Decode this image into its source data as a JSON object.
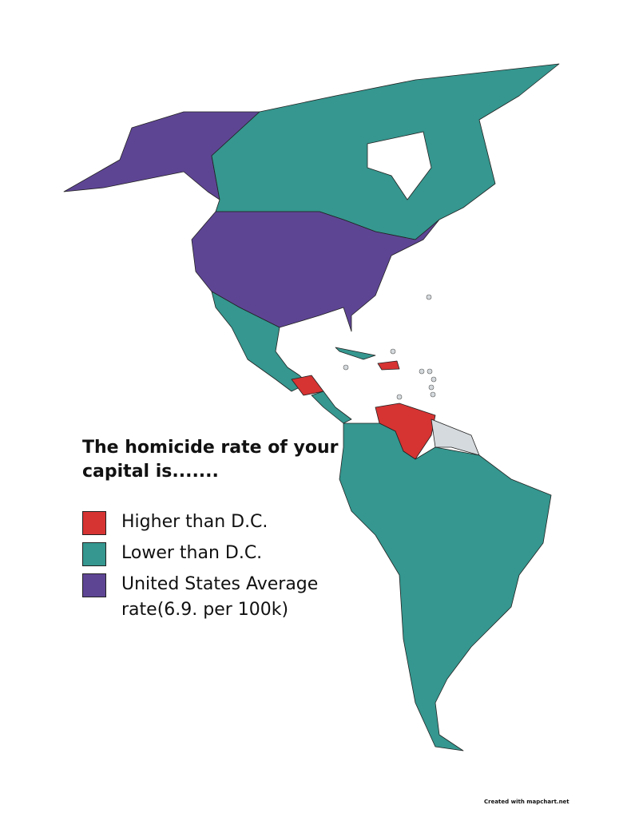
{
  "title": "The homicide rate of your capital is.......",
  "legend": [
    {
      "label": "Higher than D.C.",
      "color": "#d63333"
    },
    {
      "label": "Lower than D.C.",
      "color": "#35978f"
    },
    {
      "label": "United States Average rate(6.9. per 100k)",
      "color": "#5e4594"
    }
  ],
  "credit": "Created with mapchart.net"
}
